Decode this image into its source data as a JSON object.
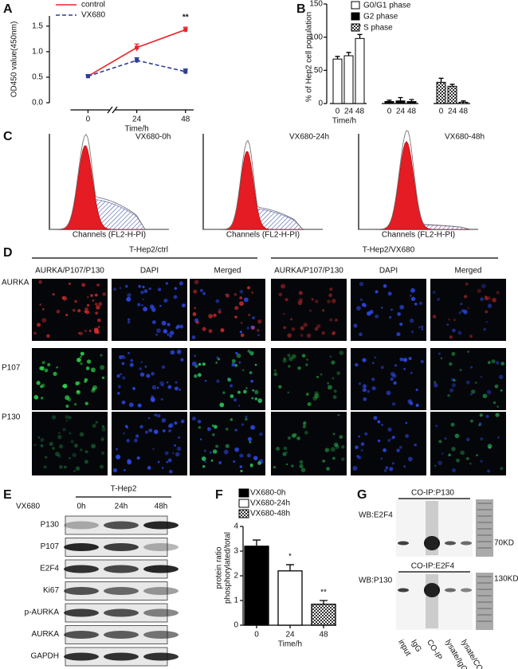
{
  "panel_labels": [
    "A",
    "B",
    "C",
    "D",
    "E",
    "F",
    "G"
  ],
  "chart_data": [
    {
      "type": "line",
      "ylabel": "OD450 value(450nm)",
      "xlabel": "Time/h",
      "x": [
        0,
        24,
        48
      ],
      "xticks": [
        0,
        24,
        48
      ],
      "xlim": [
        -19,
        52
      ],
      "ylim": [
        0,
        1.7
      ],
      "yticks": [
        {
          "value": 0,
          "label": "0.0"
        },
        0.5,
        {
          "value": 1,
          "label": "1.0"
        },
        1.5
      ],
      "series": [
        {
          "name": "control",
          "color": "#e8262b",
          "dashed": false,
          "values": [
            0.52,
            1.08,
            1.43
          ],
          "errors": [
            0.03,
            0.07,
            0.05
          ],
          "annotations": [
            null,
            null,
            "**"
          ]
        },
        {
          "name": "VX680",
          "color": "#2e3d96",
          "dashed": true,
          "values": [
            0.52,
            0.83,
            0.61
          ],
          "errors": [
            0.03,
            0.05,
            0.05
          ],
          "annotations": [
            null,
            null,
            null
          ]
        }
      ]
    },
    {
      "type": "grouped-bar",
      "ylabel": "% of Hep2 cell population",
      "xlabel": "Time/h",
      "categories": [
        "0",
        "24",
        "48"
      ],
      "ylim": [
        0,
        150
      ],
      "yticks": [
        0,
        50,
        100,
        150
      ],
      "series": [
        {
          "name": "G0/G1 phase",
          "color": "#ffffff",
          "pattern": null,
          "values": [
            67,
            72,
            98
          ],
          "errors": [
            4,
            5,
            6
          ],
          "annotations": [
            null,
            null,
            "*"
          ]
        },
        {
          "name": "G2 phase",
          "color": "#000000",
          "pattern": null,
          "values": [
            3,
            4,
            3
          ],
          "errors": [
            2,
            5,
            3
          ],
          "annotations": [
            null,
            null,
            null
          ]
        },
        {
          "name": "S phase",
          "color": "#ffffff",
          "pattern": "checker",
          "values": [
            32,
            26,
            2
          ],
          "errors": [
            6,
            3,
            2
          ],
          "annotations": [
            null,
            null,
            null
          ]
        }
      ]
    },
    {
      "type": "bar",
      "ylabel": [
        "protein ratio",
        "phosphorylated/total"
      ],
      "xlabel": "Time/h",
      "categories": [
        "0",
        "24",
        "48"
      ],
      "values": [
        3.2,
        2.2,
        0.85
      ],
      "errors": [
        0.25,
        0.25,
        0.15
      ],
      "value_annotations": [
        null,
        "*",
        "**"
      ],
      "legend": [
        "VX680-0h",
        "VX680-24h",
        "VX680-48h"
      ],
      "colors": [
        "#000000",
        "#ffffff",
        "#ffffff"
      ],
      "patterns": [
        null,
        null,
        "checker"
      ],
      "ylim": [
        0,
        4
      ],
      "yticks": [
        0,
        1,
        2,
        3,
        4
      ]
    }
  ],
  "flow_cytometry": {
    "plots": [
      {
        "title": "VX680-0h",
        "xlabel": "Channels (FL2-H-PI)"
      },
      {
        "title": "VX680-24h",
        "xlabel": "Channels (FL2-H-PI)"
      },
      {
        "title": "VX680-48h",
        "xlabel": "Channels (FL2-H-PI)"
      }
    ]
  },
  "immunofluorescence": {
    "groups": [
      {
        "title": "T-Hep2/ctrl",
        "columns": [
          "AURKA/P107/P130",
          "DAPI",
          "Merged"
        ]
      },
      {
        "title": "T-Hep2/VX680",
        "columns": [
          "AURKA/P107/P130",
          "DAPI",
          "Merged"
        ]
      }
    ],
    "rows": [
      "AURKA",
      "P107",
      "P130"
    ]
  },
  "western_blot": {
    "group": "T-Hep2",
    "treatment": "VX680",
    "lanes": [
      "0h",
      "24h",
      "48h"
    ],
    "rows": [
      "P130",
      "P107",
      "E2F4",
      "Ki67",
      "p-AURKA",
      "AURKA",
      "GAPDH"
    ]
  },
  "co_ip": {
    "blots": [
      {
        "title": "CO-IP:P130",
        "wb": "WB:E2F4",
        "size": "70KD"
      },
      {
        "title": "CO-IP:E2F4",
        "wb": "WB:P130",
        "size": "130KD"
      }
    ],
    "lanes": [
      "input",
      "IgG",
      "CO-IP",
      "lysate/IgG",
      "lysate/CO-IP"
    ]
  }
}
